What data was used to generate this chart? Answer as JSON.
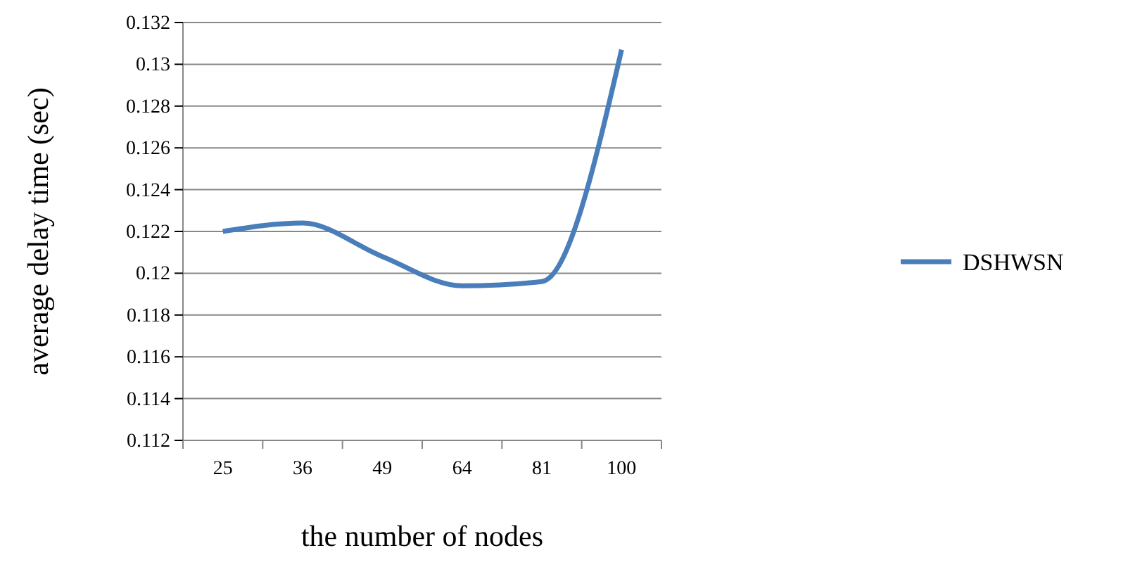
{
  "chart_data": {
    "type": "line",
    "xlabel": "the number of nodes",
    "ylabel": "average delay time (sec)",
    "categories": [
      "25",
      "36",
      "49",
      "64",
      "81",
      "100"
    ],
    "series": [
      {
        "name": "DSHWSN",
        "color": "#4a7ebb",
        "values": [
          0.122,
          0.1224,
          0.1208,
          0.1194,
          0.1196,
          0.1307
        ]
      }
    ],
    "ylim": [
      0.112,
      0.132
    ],
    "yticks": [
      0.112,
      0.114,
      0.116,
      0.118,
      0.12,
      0.122,
      0.124,
      0.126,
      0.128,
      0.13,
      0.132
    ],
    "grid": "y",
    "legend": "right",
    "marker": "none",
    "line_style": "solid"
  }
}
